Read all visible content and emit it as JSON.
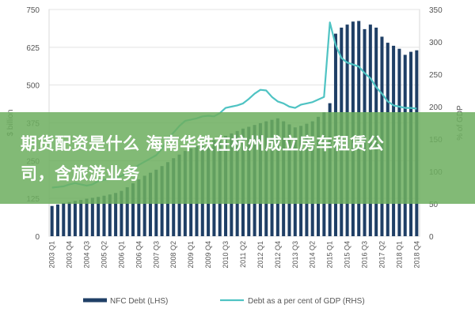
{
  "chart_data": {
    "type": "bar",
    "categories": [
      "2003 Q1",
      "2003 Q2",
      "2003 Q3",
      "2003 Q4",
      "2004 Q1",
      "2004 Q2",
      "2004 Q3",
      "2004 Q4",
      "2005 Q1",
      "2005 Q2",
      "2005 Q3",
      "2005 Q4",
      "2006 Q1",
      "2006 Q2",
      "2006 Q3",
      "2006 Q4",
      "2007 Q1",
      "2007 Q2",
      "2007 Q3",
      "2007 Q4",
      "2008 Q1",
      "2008 Q2",
      "2008 Q3",
      "2008 Q4",
      "2009 Q1",
      "2009 Q2",
      "2009 Q3",
      "2009 Q4",
      "2010 Q1",
      "2010 Q2",
      "2010 Q3",
      "2010 Q4",
      "2011 Q1",
      "2011 Q2",
      "2011 Q3",
      "2011 Q4",
      "2012 Q1",
      "2012 Q2",
      "2012 Q3",
      "2012 Q4",
      "2013 Q1",
      "2013 Q2",
      "2013 Q3",
      "2013 Q4",
      "2014 Q1",
      "2014 Q2",
      "2014 Q3",
      "2014 Q4",
      "2015 Q1",
      "2015 Q2",
      "2015 Q3",
      "2015 Q4",
      "2016 Q1",
      "2016 Q2",
      "2016 Q3",
      "2016 Q4",
      "2017 Q1",
      "2017 Q2",
      "2017 Q3",
      "2017 Q4",
      "2018 Q1",
      "2018 Q2",
      "2018 Q3",
      "2018 Q4"
    ],
    "x_tick_labels": [
      "2003 Q1",
      "2003 Q4",
      "2004 Q3",
      "2005 Q2",
      "2006 Q1",
      "2006 Q4",
      "2007 Q3",
      "2008 Q2",
      "2009 Q1",
      "2009 Q4",
      "2010 Q3",
      "2011 Q2",
      "2012 Q1",
      "2012 Q4",
      "2013 Q3",
      "2014 Q2",
      "2015 Q1",
      "2015 Q4",
      "2016 Q3",
      "2017 Q2",
      "2018 Q1",
      "2018 Q4"
    ],
    "series": [
      {
        "name": "NFC Debt (LHS)",
        "axis": "left",
        "color": "#1f3f66",
        "values": [
          100,
          105,
          110,
          113,
          117,
          120,
          124,
          127,
          130,
          134,
          138,
          143,
          150,
          162,
          175,
          188,
          200,
          210,
          220,
          232,
          245,
          258,
          270,
          282,
          290,
          298,
          305,
          312,
          318,
          325,
          332,
          340,
          348,
          356,
          362,
          368,
          374,
          380,
          385,
          390,
          380,
          370,
          360,
          365,
          372,
          380,
          395,
          410,
          440,
          670,
          690,
          700,
          710,
          712,
          685,
          700,
          690,
          660,
          640,
          630,
          620,
          600,
          610,
          615
        ]
      },
      {
        "name": "Debt as a per cent of GDP (RHS)",
        "axis": "right",
        "color": "#4fc3c3",
        "values": [
          75,
          76,
          77,
          80,
          82,
          80,
          78,
          80,
          85,
          87,
          88,
          90,
          93,
          98,
          103,
          110,
          115,
          120,
          125,
          135,
          150,
          160,
          170,
          178,
          180,
          182,
          185,
          186,
          185,
          190,
          198,
          200,
          202,
          205,
          212,
          220,
          226,
          225,
          215,
          208,
          205,
          200,
          198,
          203,
          205,
          207,
          211,
          215,
          330,
          295,
          275,
          268,
          265,
          262,
          252,
          244,
          230,
          220,
          208,
          202,
          200,
          198,
          198,
          197
        ]
      }
    ],
    "y_left": {
      "ticks": [
        "0",
        "125",
        "250",
        "375",
        "500",
        "625",
        "750"
      ],
      "label": "$ billion",
      "lim": [
        0,
        750
      ]
    },
    "y_right": {
      "ticks": [
        "0",
        "50",
        "100",
        "150",
        "200",
        "250",
        "300",
        "350"
      ],
      "label": "% of GDP",
      "lim": [
        0,
        350
      ]
    },
    "legend": [
      "NFC Debt (LHS)",
      "Debt as a per cent of GDP (RHS)"
    ],
    "legend_position": "bottom",
    "grid": true
  },
  "banner": {
    "line1": "期货配资是什么 海南华铁在杭州成立房车租赁公",
    "line2": "司，含旅游业务"
  }
}
